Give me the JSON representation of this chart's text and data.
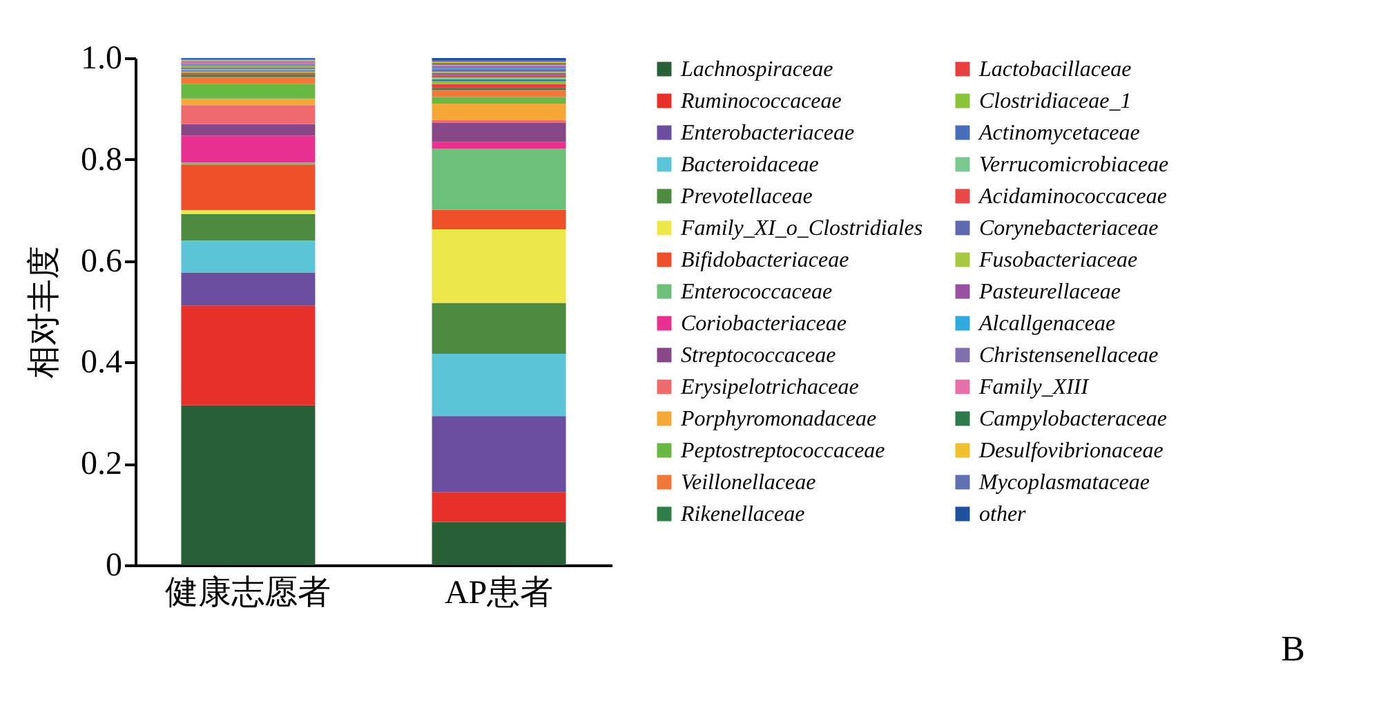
{
  "chart_data": {
    "type": "bar",
    "stacked": true,
    "ylabel": "相对丰度",
    "categories": [
      "健康志愿者",
      "AP患者"
    ],
    "ylim": [
      0,
      1
    ],
    "yticks": [
      {
        "value": 0,
        "label": "0"
      },
      0.2,
      0.4,
      0.6,
      0.8,
      {
        "value": 1,
        "label": "1.0"
      }
    ],
    "grid": false,
    "legend": "right",
    "annotations": [
      "B"
    ],
    "series": [
      {
        "name": "Lachnospiraceae",
        "color": "#2a6038",
        "values": [
          0.315,
          0.085
        ]
      },
      {
        "name": "Ruminococcaceae",
        "color": "#e8302a",
        "values": [
          0.197,
          0.059
        ]
      },
      {
        "name": "Enterobacteriaceae",
        "color": "#6a4fa0",
        "values": [
          0.065,
          0.15
        ]
      },
      {
        "name": "Bacteroidaceae",
        "color": "#5bc4d6",
        "values": [
          0.063,
          0.123
        ]
      },
      {
        "name": "Prevotellaceae",
        "color": "#4e8a40",
        "values": [
          0.052,
          0.1
        ]
      },
      {
        "name": "Family_XI_o_Clostridiales",
        "color": "#ece84a",
        "values": [
          0.008,
          0.145
        ]
      },
      {
        "name": "Bifidobacteriaceae",
        "color": "#ef4f28",
        "values": [
          0.09,
          0.039
        ]
      },
      {
        "name": "Enterococcaceae",
        "color": "#6cc07a",
        "values": [
          0.004,
          0.12
        ]
      },
      {
        "name": "Coriobacteriaceae",
        "color": "#e83090",
        "values": [
          0.053,
          0.013
        ]
      },
      {
        "name": "Streptococcaceae",
        "color": "#884888",
        "values": [
          0.023,
          0.038
        ]
      },
      {
        "name": "Erysipelotrichaceae",
        "color": "#ee6a6c",
        "values": [
          0.037,
          0.006
        ]
      },
      {
        "name": "Porphyromonadaceae",
        "color": "#f5a838",
        "values": [
          0.013,
          0.032
        ]
      },
      {
        "name": "Peptostreptococcaceae",
        "color": "#6ab844",
        "values": [
          0.029,
          0.013
        ]
      },
      {
        "name": "Veillonellaceae",
        "color": "#f07838",
        "values": [
          0.014,
          0.014
        ]
      },
      {
        "name": "Rikenellaceae",
        "color": "#2e8048",
        "values": [
          0.004,
          0.004
        ]
      },
      {
        "name": "Lactobacillaceae",
        "color": "#e84040",
        "values": [
          0.003,
          0.008
        ]
      },
      {
        "name": "Clostridiaceae_1",
        "color": "#8ac43a",
        "values": [
          0.004,
          0.005
        ]
      },
      {
        "name": "Actinomycetaceae",
        "color": "#4870b8",
        "values": [
          0.002,
          0.004
        ]
      },
      {
        "name": "Verrucomicrobiaceae",
        "color": "#78c890",
        "values": [
          0.002,
          0.004
        ]
      },
      {
        "name": "Acidaminococcaceae",
        "color": "#e84848",
        "values": [
          0.002,
          0.005
        ]
      },
      {
        "name": "Corynebacteriaceae",
        "color": "#6068b0",
        "values": [
          0.002,
          0.003
        ]
      },
      {
        "name": "Fusobacteriaceae",
        "color": "#a8c840",
        "values": [
          0.002,
          0.003
        ]
      },
      {
        "name": "Pasteurellaceae",
        "color": "#9850a0",
        "values": [
          0.002,
          0.004
        ]
      },
      {
        "name": "Alcallgenaceae",
        "color": "#30a8e0",
        "values": [
          0.002,
          0.003
        ]
      },
      {
        "name": "Christensenellaceae",
        "color": "#8070b0",
        "values": [
          0.002,
          0.004
        ]
      },
      {
        "name": "Family_XIII",
        "color": "#e870a8",
        "values": [
          0.002,
          0.003
        ]
      },
      {
        "name": "Campylobacteraceae",
        "color": "#2e7a4a",
        "values": [
          0.002,
          0.003
        ]
      },
      {
        "name": "Desulfovibrionaceae",
        "color": "#f0c030",
        "values": [
          0.002,
          0.002
        ]
      },
      {
        "name": "Mycoplasmataceae",
        "color": "#6070b0",
        "values": [
          0.002,
          0.003
        ]
      },
      {
        "name": "other",
        "color": "#2050a0",
        "values": [
          0.002,
          0.005
        ]
      }
    ]
  }
}
